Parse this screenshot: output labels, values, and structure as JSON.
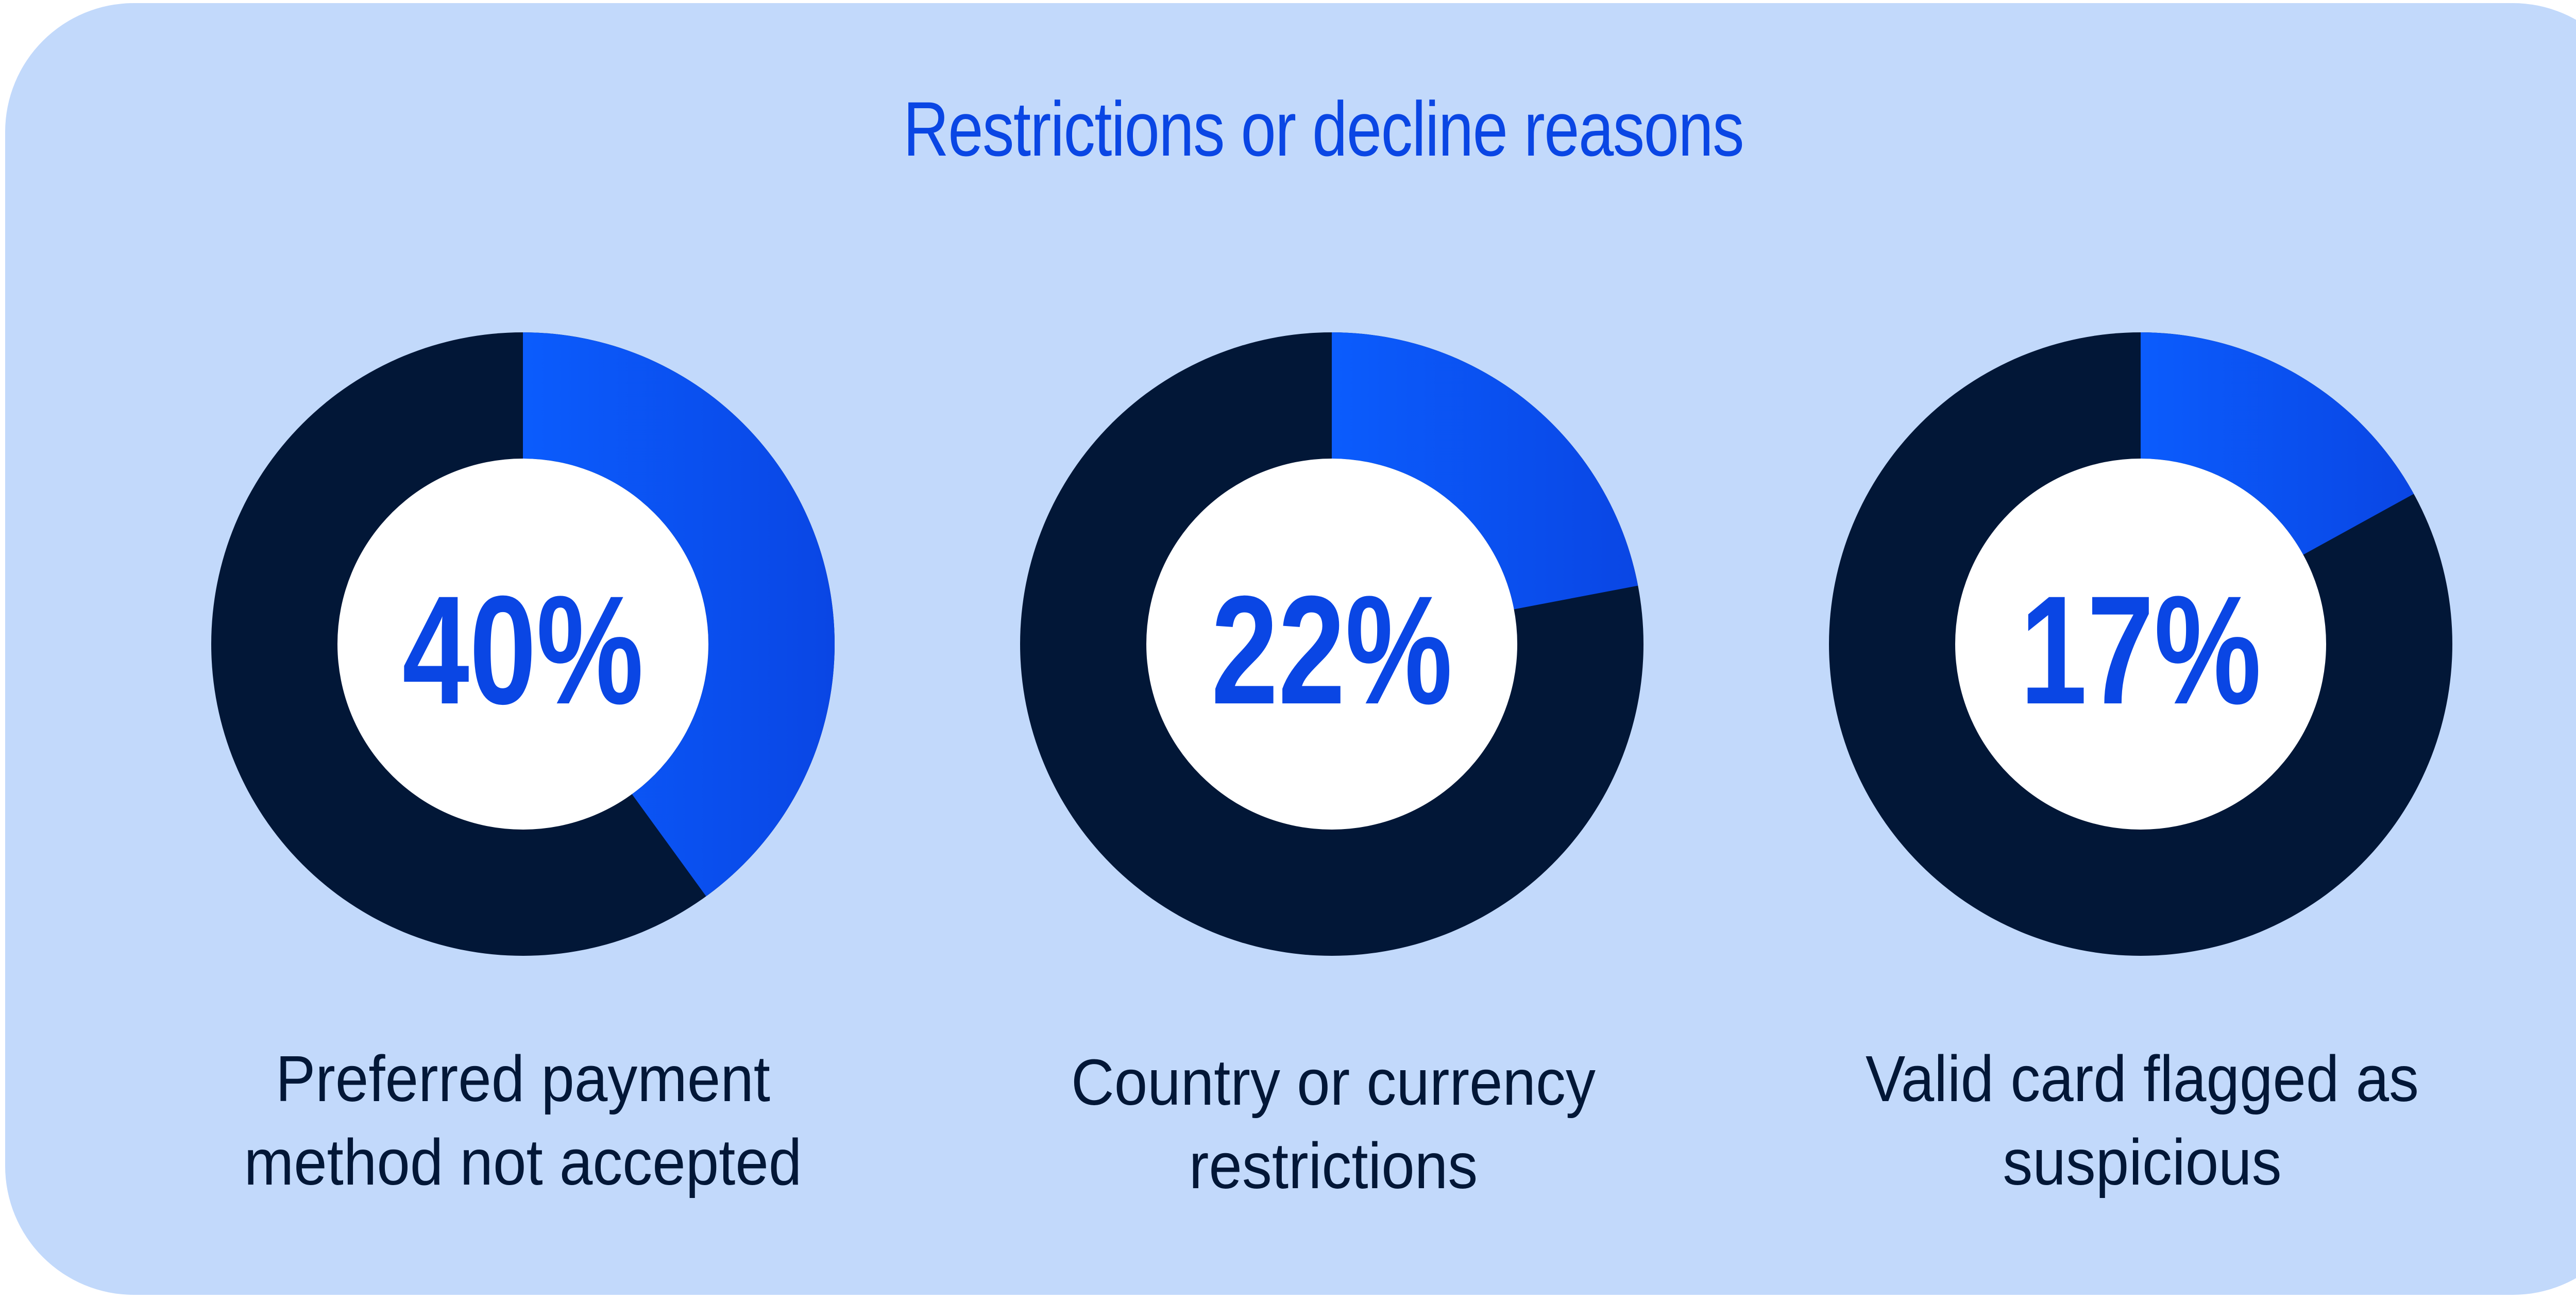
{
  "title": "Restrictions or decline reasons",
  "colors": {
    "background": "#c2d9fb",
    "accent": "#0a46e4",
    "accent_light": "#0b5cfd",
    "dark": "#021737",
    "center": "#ffffff"
  },
  "chart_data": [
    {
      "type": "pie",
      "style": "donut",
      "value_percent": 40,
      "value_label": "40%",
      "label": "Preferred payment method not accepted",
      "label_lines": [
        "Preferred payment",
        "method not accepted"
      ]
    },
    {
      "type": "pie",
      "style": "donut",
      "value_percent": 22,
      "value_label": "22%",
      "label": "Country or currency restrictions",
      "label_lines": [
        "Country or currency",
        "restrictions"
      ]
    },
    {
      "type": "pie",
      "style": "donut",
      "value_percent": 17,
      "value_label": "17%",
      "label": "Valid card flagged as suspicious",
      "label_lines": [
        "Valid card flagged as",
        "suspicious"
      ]
    }
  ]
}
